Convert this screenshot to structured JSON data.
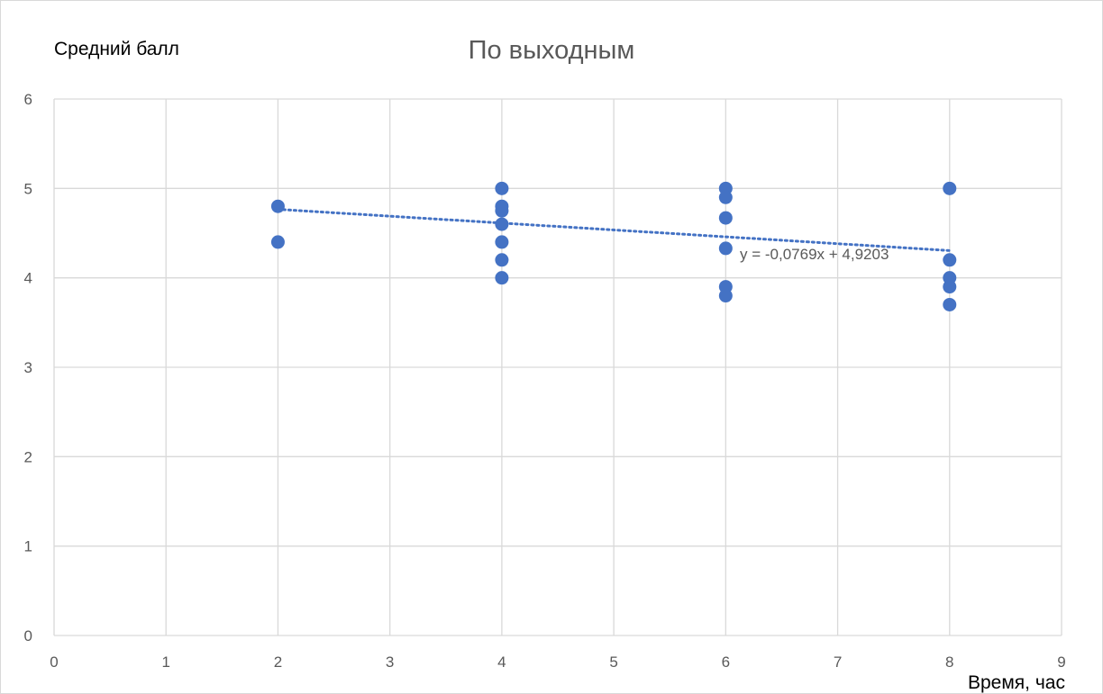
{
  "chart_data": {
    "type": "scatter",
    "title": "По выходным",
    "xlabel": "Время, час",
    "ylabel": "Средний балл",
    "xlim": [
      0,
      9
    ],
    "ylim": [
      0,
      6
    ],
    "x_ticks": [
      "0",
      "1",
      "2",
      "3",
      "4",
      "5",
      "6",
      "7",
      "8",
      "9"
    ],
    "y_ticks": [
      "0",
      "1",
      "2",
      "3",
      "4",
      "5",
      "6"
    ],
    "grid": true,
    "legend": "none",
    "series": [
      {
        "color": "#4472c4",
        "points": [
          [
            2,
            4.8
          ],
          [
            2,
            4.4
          ],
          [
            4,
            5.0
          ],
          [
            4,
            4.8
          ],
          [
            4,
            4.75
          ],
          [
            4,
            4.6
          ],
          [
            4,
            4.4
          ],
          [
            4,
            4.2
          ],
          [
            4,
            4.0
          ],
          [
            6,
            5.0
          ],
          [
            6,
            4.9
          ],
          [
            6,
            4.67
          ],
          [
            6,
            4.33
          ],
          [
            6,
            3.9
          ],
          [
            6,
            3.8
          ],
          [
            8,
            5.0
          ],
          [
            8,
            4.2
          ],
          [
            8,
            4.0
          ],
          [
            8,
            3.9
          ],
          [
            8,
            3.7
          ]
        ]
      }
    ],
    "trendline": {
      "type": "linear",
      "slope": -0.0769,
      "intercept": 4.9203,
      "x_range": [
        2,
        8
      ],
      "equation_label": "y = -0,0769x + 4,9203",
      "style": "dotted",
      "color": "#4472c4"
    }
  }
}
